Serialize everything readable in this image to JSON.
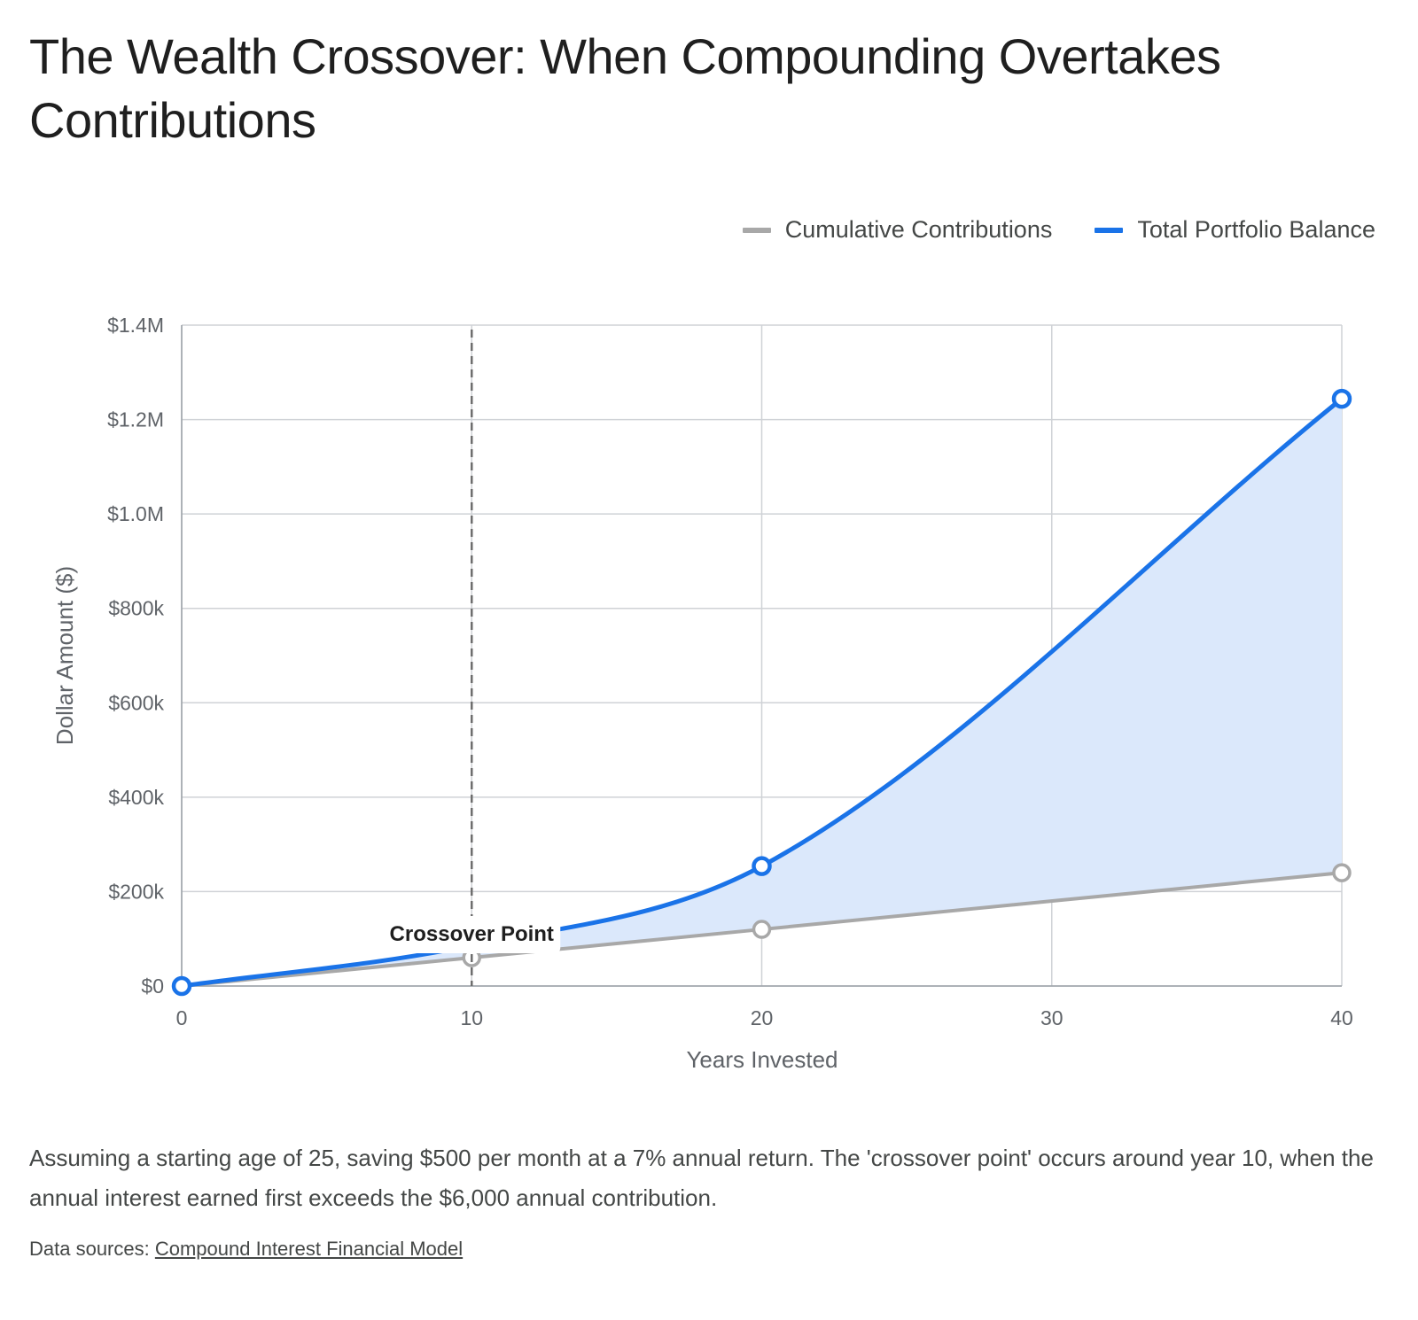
{
  "title": "The Wealth Crossover: When Compounding Overtakes Contributions",
  "legend": [
    {
      "label": "Cumulative Contributions",
      "color": "#a8a8a8"
    },
    {
      "label": "Total Portfolio Balance",
      "color": "#1a73e8"
    }
  ],
  "caption": "Assuming a starting age of 25, saving $500 per month at a 7% annual return. The 'crossover point' occurs around year 10, when the annual interest earned first exceeds the $6,000 annual contribution.",
  "sources": {
    "prefix": "Data sources:",
    "link_text": "Compound Interest Financial Model"
  },
  "chart_data": {
    "type": "line",
    "xlabel": "Years Invested",
    "ylabel": "Dollar Amount ($)",
    "xlim": [
      0,
      40
    ],
    "ylim": [
      0,
      1400000
    ],
    "x_ticks": [
      0,
      10,
      20,
      30,
      40
    ],
    "x_tick_labels": [
      "0",
      "10",
      "20",
      "30",
      "40"
    ],
    "y_ticks": [
      0,
      200000,
      400000,
      600000,
      800000,
      1000000,
      1200000,
      1400000
    ],
    "y_tick_labels": [
      "$0",
      "$200k",
      "$400k",
      "$600k",
      "$800k",
      "$1.0M",
      "$1.2M",
      "$1.4M"
    ],
    "grid": true,
    "legend_position": "top-right",
    "series": [
      {
        "name": "Cumulative Contributions",
        "color": "#a8a8a8",
        "x": [
          0,
          10,
          20,
          40
        ],
        "values": [
          0,
          60000,
          120000,
          240000
        ]
      },
      {
        "name": "Total Portfolio Balance",
        "color": "#1a73e8",
        "fill": "#dbe8fb",
        "x": [
          0,
          10,
          20,
          40
        ],
        "values": [
          0,
          86000,
          254000,
          1244000
        ]
      }
    ],
    "annotations": [
      {
        "type": "vertical_line",
        "x": 10,
        "style": "dashed",
        "label": "Crossover Point"
      }
    ]
  }
}
